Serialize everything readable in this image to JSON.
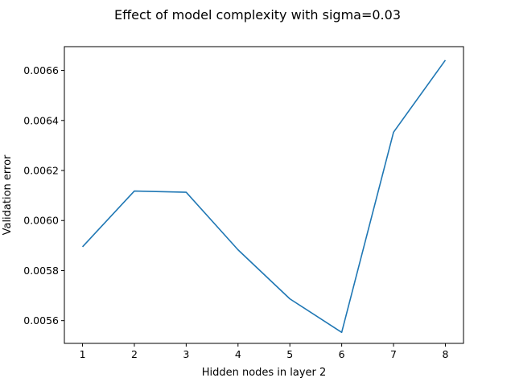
{
  "chart_data": {
    "type": "line",
    "title": "Effect of model complexity with sigma=0.03",
    "xlabel": "Hidden nodes in layer 2",
    "ylabel": "Validation error",
    "x": [
      1,
      2,
      3,
      4,
      5,
      6,
      7,
      8
    ],
    "series": [
      {
        "values": [
          0.005895,
          0.006118,
          0.006113,
          0.005883,
          0.005687,
          0.005553,
          0.006353,
          0.006641
        ],
        "color": "#1f77b4"
      }
    ],
    "xlim": [
      0.65,
      8.35
    ],
    "ylim": [
      0.005509,
      0.006695
    ],
    "xticks": [
      "1",
      "2",
      "3",
      "4",
      "5",
      "6",
      "7",
      "8"
    ],
    "yticks": [
      "0.0056",
      "0.0058",
      "0.0060",
      "0.0062",
      "0.0064",
      "0.0066"
    ],
    "ytick_values": [
      0.0056,
      0.0058,
      0.006,
      0.0062,
      0.0064,
      0.0066
    ],
    "grid": false,
    "legend": "none"
  }
}
